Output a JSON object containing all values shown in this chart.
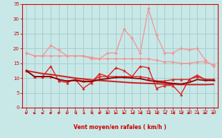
{
  "x": [
    0,
    1,
    2,
    3,
    4,
    5,
    6,
    7,
    8,
    9,
    10,
    11,
    12,
    13,
    14,
    15,
    16,
    17,
    18,
    19,
    20,
    21,
    22,
    23
  ],
  "series": [
    {
      "name": "light_pink_upper_fan",
      "color": "#f09898",
      "linewidth": 1.0,
      "marker": "D",
      "markersize": 2.0,
      "y": [
        18.5,
        17.5,
        17.5,
        21.0,
        19.5,
        17.5,
        17.5,
        17.5,
        16.5,
        16.5,
        18.5,
        18.5,
        26.5,
        23.5,
        18.5,
        33.5,
        24.5,
        18.5,
        18.5,
        20.0,
        19.5,
        20.0,
        16.0,
        14.0
      ]
    },
    {
      "name": "light_pink_base",
      "color": "#f09898",
      "linewidth": 1.0,
      "marker": "D",
      "markersize": 2.0,
      "y": [
        18.5,
        17.5,
        17.5,
        17.5,
        17.5,
        17.5,
        17.5,
        17.5,
        17.0,
        16.5,
        16.5,
        16.5,
        16.5,
        16.5,
        16.5,
        16.5,
        16.0,
        15.5,
        15.5,
        15.0,
        15.0,
        15.5,
        15.5,
        14.5
      ]
    },
    {
      "name": "trend_line",
      "color": "#cc2222",
      "linewidth": 1.5,
      "marker": null,
      "markersize": 0,
      "y": [
        12.5,
        12.0,
        11.5,
        11.2,
        10.8,
        10.4,
        10.0,
        9.7,
        9.4,
        9.2,
        9.0,
        8.8,
        8.6,
        8.4,
        8.3,
        8.2,
        8.1,
        8.0,
        7.9,
        7.8,
        7.8,
        7.8,
        7.8,
        7.9
      ]
    },
    {
      "name": "red_variable1",
      "color": "#dd2222",
      "linewidth": 1.0,
      "marker": "^",
      "markersize": 2.5,
      "y": [
        12.5,
        10.5,
        10.5,
        14.0,
        9.0,
        8.5,
        9.5,
        6.5,
        8.5,
        11.5,
        10.5,
        13.5,
        12.5,
        10.5,
        14.0,
        13.5,
        6.5,
        7.5,
        7.5,
        4.5,
        9.5,
        11.0,
        9.5,
        9.5
      ]
    },
    {
      "name": "red_variable2",
      "color": "#dd2222",
      "linewidth": 1.0,
      "marker": "^",
      "markersize": 2.5,
      "y": [
        12.5,
        10.5,
        10.5,
        10.5,
        9.5,
        9.0,
        9.5,
        9.0,
        9.0,
        10.5,
        10.5,
        10.5,
        10.5,
        10.5,
        10.5,
        10.0,
        9.0,
        9.0,
        9.5,
        9.5,
        9.5,
        10.5,
        9.5,
        9.5
      ]
    },
    {
      "name": "dark_trend",
      "color": "#880000",
      "linewidth": 1.3,
      "marker": null,
      "markersize": 0,
      "y": [
        12.5,
        10.5,
        10.5,
        10.5,
        9.5,
        9.0,
        9.2,
        8.8,
        8.8,
        9.5,
        9.8,
        10.2,
        10.2,
        10.0,
        9.8,
        9.2,
        8.8,
        8.5,
        8.2,
        8.0,
        8.5,
        9.5,
        9.2,
        9.2
      ]
    }
  ],
  "wind_dirs_angle": [
    225,
    225,
    225,
    225,
    225,
    225,
    270,
    270,
    270,
    225,
    225,
    225,
    225,
    270,
    270,
    270,
    270,
    270,
    270,
    270,
    225,
    270,
    225,
    225
  ],
  "xlabel": "Vent moyen/en rafales ( km/h )",
  "xlim": [
    -0.5,
    23.5
  ],
  "ylim": [
    0,
    35
  ],
  "yticks": [
    0,
    5,
    10,
    15,
    20,
    25,
    30,
    35
  ],
  "xticks": [
    0,
    1,
    2,
    3,
    4,
    5,
    6,
    7,
    8,
    9,
    10,
    11,
    12,
    13,
    14,
    15,
    16,
    17,
    18,
    19,
    20,
    21,
    22,
    23
  ],
  "bg_color": "#c8e8e8",
  "grid_color": "#a8cccc",
  "tick_color": "#cc0000",
  "label_color": "#cc0000",
  "arrow_color": "#cc0000"
}
